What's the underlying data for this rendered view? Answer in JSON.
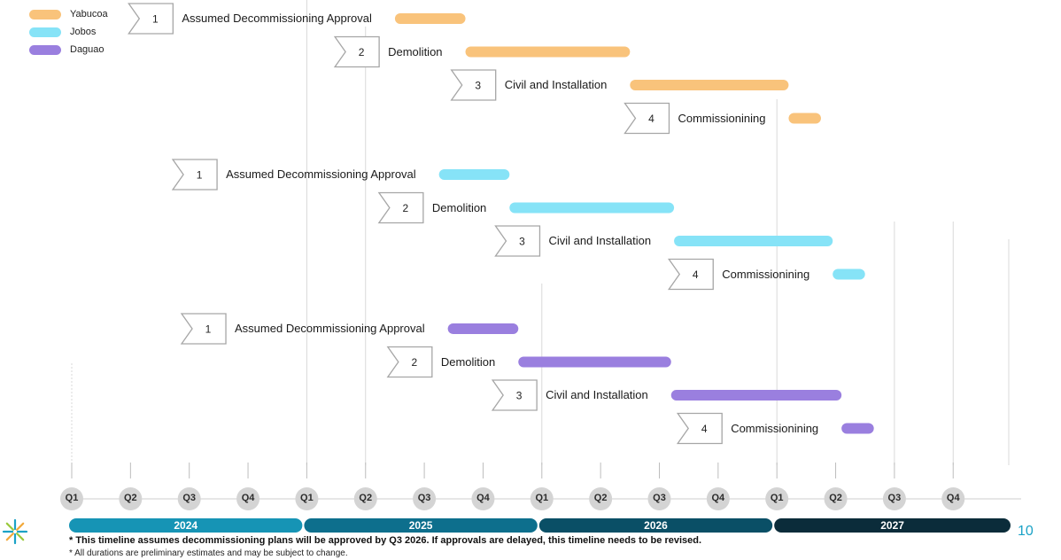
{
  "legend": [
    {
      "name": "Yabucoa",
      "color": "#f9c37b"
    },
    {
      "name": "Jobos",
      "color": "#86e3f7"
    },
    {
      "name": "Daguao",
      "color": "#9a7fdf"
    }
  ],
  "sites": [
    {
      "name": "Yabucoa",
      "color": "#f9c37b",
      "steps": [
        {
          "num": "1",
          "label": "Assumed Decommissioning Approval",
          "start": 5.5,
          "end": 6.7
        },
        {
          "num": "2",
          "label": "Demolition",
          "start": 6.7,
          "end": 9.5
        },
        {
          "num": "3",
          "label": "Civil and Installation",
          "start": 9.5,
          "end": 12.2
        },
        {
          "num": "4",
          "label": "Commissionining",
          "start": 12.2,
          "end": 12.75
        }
      ]
    },
    {
      "name": "Jobos",
      "color": "#86e3f7",
      "steps": [
        {
          "num": "1",
          "label": "Assumed Decommissioning Approval",
          "start": 6.25,
          "end": 7.45
        },
        {
          "num": "2",
          "label": "Demolition",
          "start": 7.45,
          "end": 10.25
        },
        {
          "num": "3",
          "label": "Civil and Installation",
          "start": 10.25,
          "end": 12.95
        },
        {
          "num": "4",
          "label": "Commissionining",
          "start": 12.95,
          "end": 13.5
        }
      ]
    },
    {
      "name": "Daguao",
      "color": "#9a7fdf",
      "steps": [
        {
          "num": "1",
          "label": "Assumed Decommissioning Approval",
          "start": 6.4,
          "end": 7.6
        },
        {
          "num": "2",
          "label": "Demolition",
          "start": 7.6,
          "end": 10.2
        },
        {
          "num": "3",
          "label": "Civil and Installation",
          "start": 10.2,
          "end": 13.1
        },
        {
          "num": "4",
          "label": "Commissionining",
          "start": 13.1,
          "end": 13.65
        }
      ]
    }
  ],
  "quarters": [
    "Q1",
    "Q2",
    "Q3",
    "Q4",
    "Q1",
    "Q2",
    "Q3",
    "Q4",
    "Q1",
    "Q2",
    "Q3",
    "Q4",
    "Q1",
    "Q2",
    "Q3",
    "Q4"
  ],
  "years": [
    {
      "label": "2024",
      "color": "#1694b5"
    },
    {
      "label": "2025",
      "color": "#0d6f8d"
    },
    {
      "label": "2026",
      "color": "#0a4f66"
    },
    {
      "label": "2027",
      "color": "#0b2c3a"
    }
  ],
  "footnotes": {
    "primary": "* This timeline assumes decommissioning plans will be approved by Q3 2026. If approvals are delayed, this timeline needs to be revised.",
    "secondary": "* All durations are preliminary estimates and may be subject to change."
  },
  "page_number": "10",
  "colors": {
    "accent": "#1ba2c6",
    "quarter_circle": "#d4d4d4",
    "gridline": "#d9d9d9"
  }
}
